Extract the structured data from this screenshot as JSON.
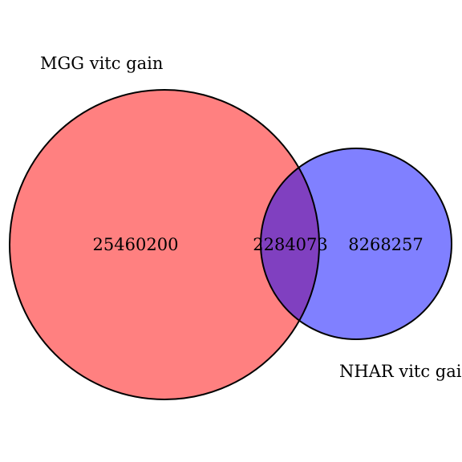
{
  "diagram": {
    "type": "venn-2",
    "sets": [
      {
        "name": "MGG vitc gain",
        "only_count": "25460200",
        "fill_color": "#ff8080"
      },
      {
        "name": "NHAR vitc gain",
        "only_count": "8268257",
        "fill_color": "#8080ff"
      }
    ],
    "intersection": {
      "count": "2284073",
      "fill_color": "#8040c0"
    },
    "outline_color": "#000000"
  }
}
